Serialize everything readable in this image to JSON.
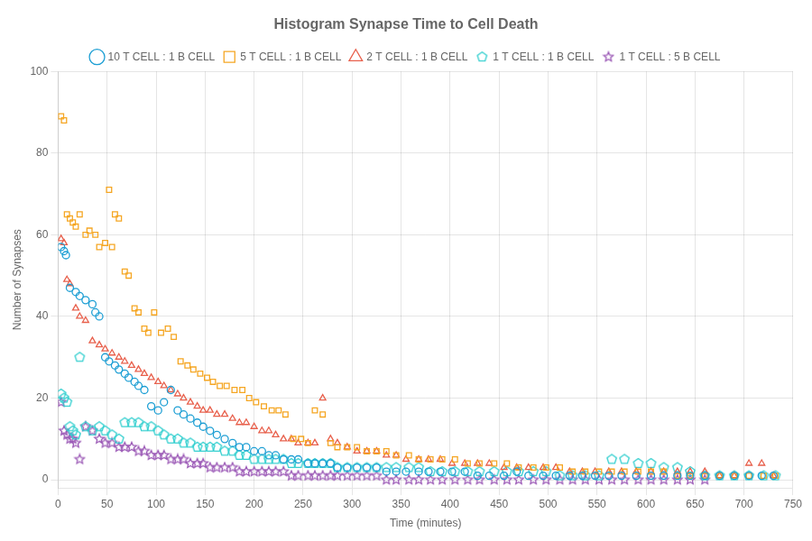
{
  "chart_data": {
    "type": "scatter",
    "title": "Histogram Synapse Time to Cell Death",
    "x_label": "Time (minutes)",
    "y_label": "Number of Synapses",
    "xlim": [
      0,
      750
    ],
    "ylim": [
      -2,
      100
    ],
    "xticks": [
      0,
      50,
      100,
      150,
      200,
      250,
      300,
      350,
      400,
      450,
      500,
      550,
      600,
      650,
      700,
      750
    ],
    "yticks": [
      0,
      20,
      40,
      60,
      80,
      100
    ],
    "grid": true,
    "legend": "top",
    "series": [
      {
        "name": "10 T CELL : 1 B CELL",
        "color": "#1E9FD4",
        "marker": "circle",
        "x": [
          3,
          6,
          8,
          12,
          18,
          22,
          28,
          35,
          38,
          42,
          48,
          52,
          58,
          62,
          68,
          72,
          78,
          82,
          88,
          95,
          102,
          108,
          115,
          122,
          128,
          135,
          142,
          148,
          155,
          162,
          170,
          178,
          185,
          192,
          200,
          208,
          215,
          222,
          230,
          238,
          245,
          255,
          262,
          270,
          278,
          285,
          295,
          305,
          315,
          325,
          335,
          345,
          355,
          368,
          378,
          390,
          402,
          415,
          428,
          440,
          455,
          468,
          480,
          495,
          508,
          522,
          535,
          548,
          562,
          575,
          590,
          605,
          618,
          632,
          645,
          660,
          675,
          690,
          705,
          718,
          730
        ],
        "values": [
          57,
          56,
          55,
          47,
          46,
          45,
          44,
          43,
          41,
          40,
          30,
          29,
          28,
          27,
          26,
          25,
          24,
          23,
          22,
          18,
          17,
          19,
          22,
          17,
          16,
          15,
          14,
          13,
          12,
          11,
          10,
          9,
          8,
          8,
          7,
          7,
          6,
          6,
          5,
          5,
          5,
          4,
          4,
          4,
          4,
          3,
          3,
          3,
          3,
          3,
          2,
          2,
          2,
          2,
          2,
          2,
          2,
          2,
          1,
          1,
          1,
          2,
          1,
          1,
          1,
          1,
          1,
          1,
          1,
          1,
          1,
          1,
          1,
          1,
          1,
          1,
          1,
          1,
          1,
          1,
          1
        ]
      },
      {
        "name": "5 T CELL : 1 B CELL",
        "color": "#F5A623",
        "marker": "square",
        "x": [
          3,
          6,
          9,
          12,
          15,
          18,
          22,
          28,
          32,
          38,
          42,
          48,
          52,
          55,
          58,
          62,
          68,
          72,
          78,
          82,
          88,
          92,
          98,
          105,
          112,
          118,
          125,
          132,
          138,
          145,
          152,
          158,
          165,
          172,
          180,
          188,
          195,
          202,
          210,
          218,
          225,
          232,
          240,
          248,
          255,
          262,
          270,
          278,
          285,
          295,
          305,
          315,
          325,
          335,
          345,
          358,
          368,
          380,
          392,
          405,
          418,
          430,
          445,
          458,
          470,
          485,
          498,
          512,
          525,
          538,
          552,
          565,
          578,
          592,
          605,
          618,
          632,
          645,
          660,
          675,
          690,
          705,
          720,
          732
        ],
        "values": [
          89,
          88,
          65,
          64,
          63,
          62,
          65,
          60,
          61,
          60,
          57,
          58,
          71,
          57,
          65,
          64,
          51,
          50,
          42,
          41,
          37,
          36,
          41,
          36,
          37,
          35,
          29,
          28,
          27,
          26,
          25,
          24,
          23,
          23,
          22,
          22,
          20,
          19,
          18,
          17,
          17,
          16,
          10,
          10,
          9,
          17,
          16,
          9,
          8,
          8,
          8,
          7,
          7,
          7,
          6,
          6,
          5,
          5,
          5,
          5,
          4,
          4,
          4,
          4,
          3,
          3,
          3,
          3,
          2,
          2,
          2,
          2,
          2,
          2,
          2,
          2,
          1,
          1,
          1,
          1,
          1,
          1,
          1,
          1
        ]
      },
      {
        "name": "2 T CELL : 1 B CELL",
        "color": "#E8604C",
        "marker": "triangle",
        "x": [
          3,
          6,
          9,
          12,
          18,
          22,
          28,
          35,
          42,
          48,
          55,
          62,
          68,
          75,
          82,
          88,
          95,
          102,
          108,
          115,
          122,
          128,
          135,
          142,
          148,
          155,
          162,
          170,
          178,
          185,
          192,
          200,
          208,
          215,
          222,
          230,
          238,
          245,
          255,
          262,
          270,
          278,
          285,
          295,
          305,
          315,
          325,
          335,
          345,
          355,
          368,
          378,
          390,
          402,
          415,
          428,
          440,
          455,
          468,
          480,
          495,
          508,
          522,
          535,
          548,
          562,
          575,
          590,
          605,
          618,
          632,
          645,
          660,
          675,
          690,
          705,
          718,
          730
        ],
        "values": [
          59,
          58,
          49,
          48,
          42,
          40,
          39,
          34,
          33,
          32,
          31,
          30,
          29,
          28,
          27,
          26,
          25,
          24,
          23,
          22,
          21,
          20,
          19,
          18,
          17,
          17,
          16,
          16,
          15,
          14,
          14,
          13,
          12,
          12,
          11,
          10,
          10,
          9,
          9,
          9,
          20,
          10,
          9,
          8,
          7,
          7,
          7,
          6,
          6,
          5,
          5,
          5,
          5,
          4,
          4,
          4,
          4,
          3,
          3,
          3,
          3,
          3,
          2,
          2,
          2,
          2,
          2,
          2,
          2,
          2,
          2,
          2,
          2,
          1,
          1,
          4,
          4,
          1
        ]
      },
      {
        "name": "1 T CELL : 1 B CELL",
        "color": "#2ECECE",
        "marker": "pentagon",
        "x": [
          3,
          6,
          9,
          12,
          15,
          18,
          22,
          28,
          35,
          42,
          48,
          55,
          62,
          68,
          75,
          82,
          88,
          95,
          102,
          108,
          115,
          122,
          128,
          135,
          142,
          148,
          155,
          162,
          170,
          178,
          185,
          192,
          200,
          208,
          215,
          222,
          230,
          238,
          245,
          255,
          262,
          270,
          278,
          285,
          295,
          305,
          315,
          325,
          335,
          345,
          358,
          368,
          380,
          392,
          405,
          418,
          430,
          445,
          458,
          470,
          485,
          498,
          512,
          525,
          538,
          552,
          565,
          578,
          592,
          605,
          618,
          632,
          645,
          660,
          675,
          690,
          705,
          720,
          732
        ],
        "values": [
          21,
          20,
          19,
          13,
          12,
          11,
          30,
          13,
          12,
          13,
          12,
          11,
          10,
          14,
          14,
          14,
          13,
          13,
          12,
          11,
          10,
          10,
          9,
          9,
          8,
          8,
          8,
          8,
          7,
          7,
          6,
          6,
          5,
          5,
          5,
          5,
          5,
          4,
          4,
          4,
          4,
          4,
          4,
          3,
          3,
          3,
          3,
          3,
          3,
          3,
          3,
          3,
          2,
          2,
          2,
          2,
          2,
          2,
          2,
          2,
          2,
          2,
          1,
          1,
          1,
          1,
          5,
          5,
          4,
          4,
          3,
          3,
          2,
          1,
          1,
          1,
          1,
          1,
          1
        ]
      },
      {
        "name": "1 T CELL : 5 B CELL",
        "color": "#9B59B6",
        "marker": "star",
        "x": [
          3,
          6,
          9,
          12,
          15,
          18,
          22,
          28,
          35,
          42,
          48,
          55,
          62,
          68,
          75,
          82,
          88,
          95,
          102,
          108,
          115,
          122,
          128,
          135,
          142,
          148,
          155,
          162,
          170,
          178,
          185,
          192,
          200,
          208,
          215,
          222,
          230,
          238,
          245,
          255,
          262,
          270,
          278,
          285,
          295,
          305,
          315,
          325,
          335,
          345,
          358,
          368,
          380,
          392,
          405,
          418,
          430,
          445,
          458,
          470,
          485,
          498,
          512,
          525,
          538,
          552,
          565,
          578,
          592,
          605,
          618,
          632,
          645,
          660
        ],
        "values": [
          19,
          12,
          11,
          10,
          10,
          9,
          5,
          13,
          12,
          10,
          9,
          9,
          8,
          8,
          8,
          7,
          7,
          6,
          6,
          6,
          5,
          5,
          5,
          4,
          4,
          4,
          3,
          3,
          3,
          3,
          2,
          2,
          2,
          2,
          2,
          2,
          2,
          1,
          1,
          1,
          1,
          1,
          1,
          1,
          1,
          1,
          1,
          1,
          0,
          0,
          0,
          0,
          0,
          0,
          0,
          0,
          0,
          0,
          0,
          0,
          0,
          0,
          0,
          0,
          0,
          0,
          0,
          0,
          0,
          0,
          0,
          0,
          0,
          0
        ]
      }
    ]
  }
}
